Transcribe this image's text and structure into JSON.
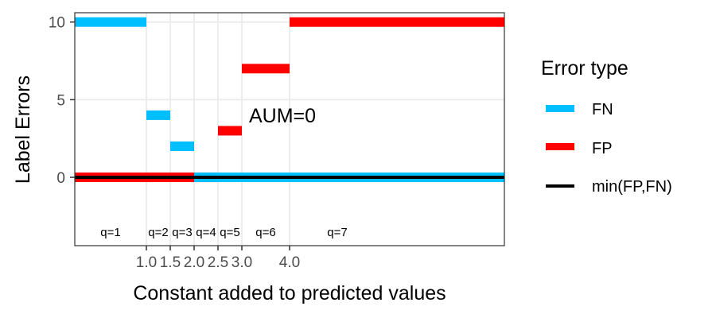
{
  "chart_data": {
    "type": "step",
    "xlabel": "Constant added to predicted values",
    "ylabel": "Label Errors",
    "xlim": [
      -0.5,
      8.5
    ],
    "ylim": [
      -4.4,
      10.6
    ],
    "x_ticks": [
      1.0,
      1.5,
      2.0,
      2.5,
      3.0,
      4.0
    ],
    "x_tick_labels": [
      "1.0",
      "1.5",
      "2.0",
      "2.5",
      "3.0",
      "4.0"
    ],
    "y_ticks": [
      0,
      5,
      10
    ],
    "y_tick_labels": [
      "0",
      "5",
      "10"
    ],
    "grid": true,
    "annotation": "AUM=0",
    "legend": {
      "title": "Error type",
      "position": "right",
      "entries": [
        {
          "label": "FN",
          "color": "#00BFFF"
        },
        {
          "label": "FP",
          "color": "#FF0000"
        },
        {
          "label": "min(FP,FN)",
          "color": "#000000"
        }
      ]
    },
    "series": [
      {
        "name": "FN",
        "color": "#00BFFF",
        "segments": [
          {
            "x0": -0.5,
            "x1": 1.0,
            "y": 10
          },
          {
            "x0": 1.0,
            "x1": 1.5,
            "y": 4
          },
          {
            "x0": 1.5,
            "x1": 2.0,
            "y": 2
          },
          {
            "x0": 2.0,
            "x1": 2.5,
            "y": 0
          },
          {
            "x0": 2.5,
            "x1": 3.0,
            "y": 0
          },
          {
            "x0": 3.0,
            "x1": 4.0,
            "y": 0
          },
          {
            "x0": 4.0,
            "x1": 8.5,
            "y": 0
          }
        ]
      },
      {
        "name": "FP",
        "color": "#FF0000",
        "segments": [
          {
            "x0": -0.5,
            "x1": 1.0,
            "y": 0
          },
          {
            "x0": 1.0,
            "x1": 1.5,
            "y": 0
          },
          {
            "x0": 1.5,
            "x1": 2.0,
            "y": 0
          },
          {
            "x0": 2.0,
            "x1": 2.5,
            "y": 0
          },
          {
            "x0": 2.5,
            "x1": 3.0,
            "y": 3
          },
          {
            "x0": 3.0,
            "x1": 4.0,
            "y": 7
          },
          {
            "x0": 4.0,
            "x1": 8.5,
            "y": 10
          }
        ]
      },
      {
        "name": "min(FP,FN)",
        "color": "#000000",
        "segments": [
          {
            "x0": -0.5,
            "x1": 8.5,
            "y": 0
          }
        ]
      }
    ],
    "interval_labels": [
      {
        "label": "q=1",
        "x": 0.25
      },
      {
        "label": "q=2",
        "x": 1.25
      },
      {
        "label": "q=3",
        "x": 1.75
      },
      {
        "label": "q=4",
        "x": 2.25
      },
      {
        "label": "q=5",
        "x": 2.75
      },
      {
        "label": "q=6",
        "x": 3.5
      },
      {
        "label": "q=7",
        "x": 5.0
      }
    ]
  }
}
